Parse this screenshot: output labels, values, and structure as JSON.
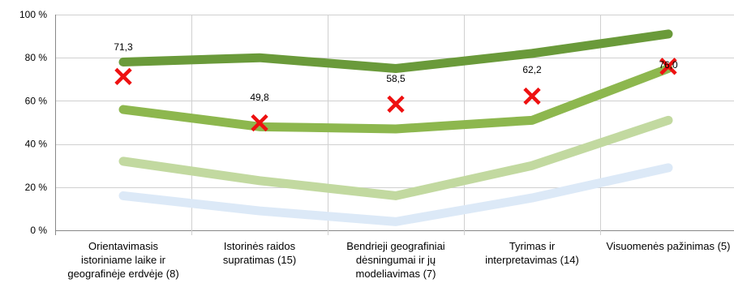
{
  "chart_data": {
    "type": "line",
    "categories": [
      "Orientavimasis istoriniame laike ir geografinėje erdvėje (8)",
      "Istorinės raidos supratimas (15)",
      "Bendrieji geografiniai dėsningumai ir jų modeliavimas (7)",
      "Tyrimas ir interpretavimas (14)",
      "Visuomenės pažinimas (5)"
    ],
    "category_lines": [
      [
        "Orientavimasis",
        "istoriniame laike ir",
        "geografinėje erdvėje (8)"
      ],
      [
        "Istorinės raidos",
        "supratimas (15)"
      ],
      [
        "Bendrieji geografiniai",
        "dėsningumai ir jų",
        "modeliavimas (7)"
      ],
      [
        "Tyrimas ir",
        "interpretavimas (14)"
      ],
      [
        "Visuomenės pažinimas (5)"
      ]
    ],
    "series": [
      {
        "values": [
          78,
          80,
          75,
          82,
          91
        ],
        "color": "#6a9a3a"
      },
      {
        "values": [
          56,
          48,
          47,
          51,
          75
        ],
        "color": "#8db74e"
      },
      {
        "values": [
          32,
          23,
          16,
          30,
          51
        ],
        "color": "#c2d9a0"
      },
      {
        "values": [
          16,
          9,
          4,
          15,
          29
        ],
        "color": "#dce9f7"
      }
    ],
    "markers": {
      "values": [
        71.3,
        49.8,
        58.5,
        62.2,
        76.0
      ],
      "labels": [
        "71,3",
        "49,8",
        "58,5",
        "62,2",
        "76,0"
      ],
      "color": "#ee1111",
      "symbol": "x"
    },
    "yticks": [
      "0 %",
      "20 %",
      "40 %",
      "60 %",
      "80 %",
      "100 %"
    ],
    "ylim": [
      0,
      100
    ],
    "grid": true,
    "legend": "none"
  }
}
